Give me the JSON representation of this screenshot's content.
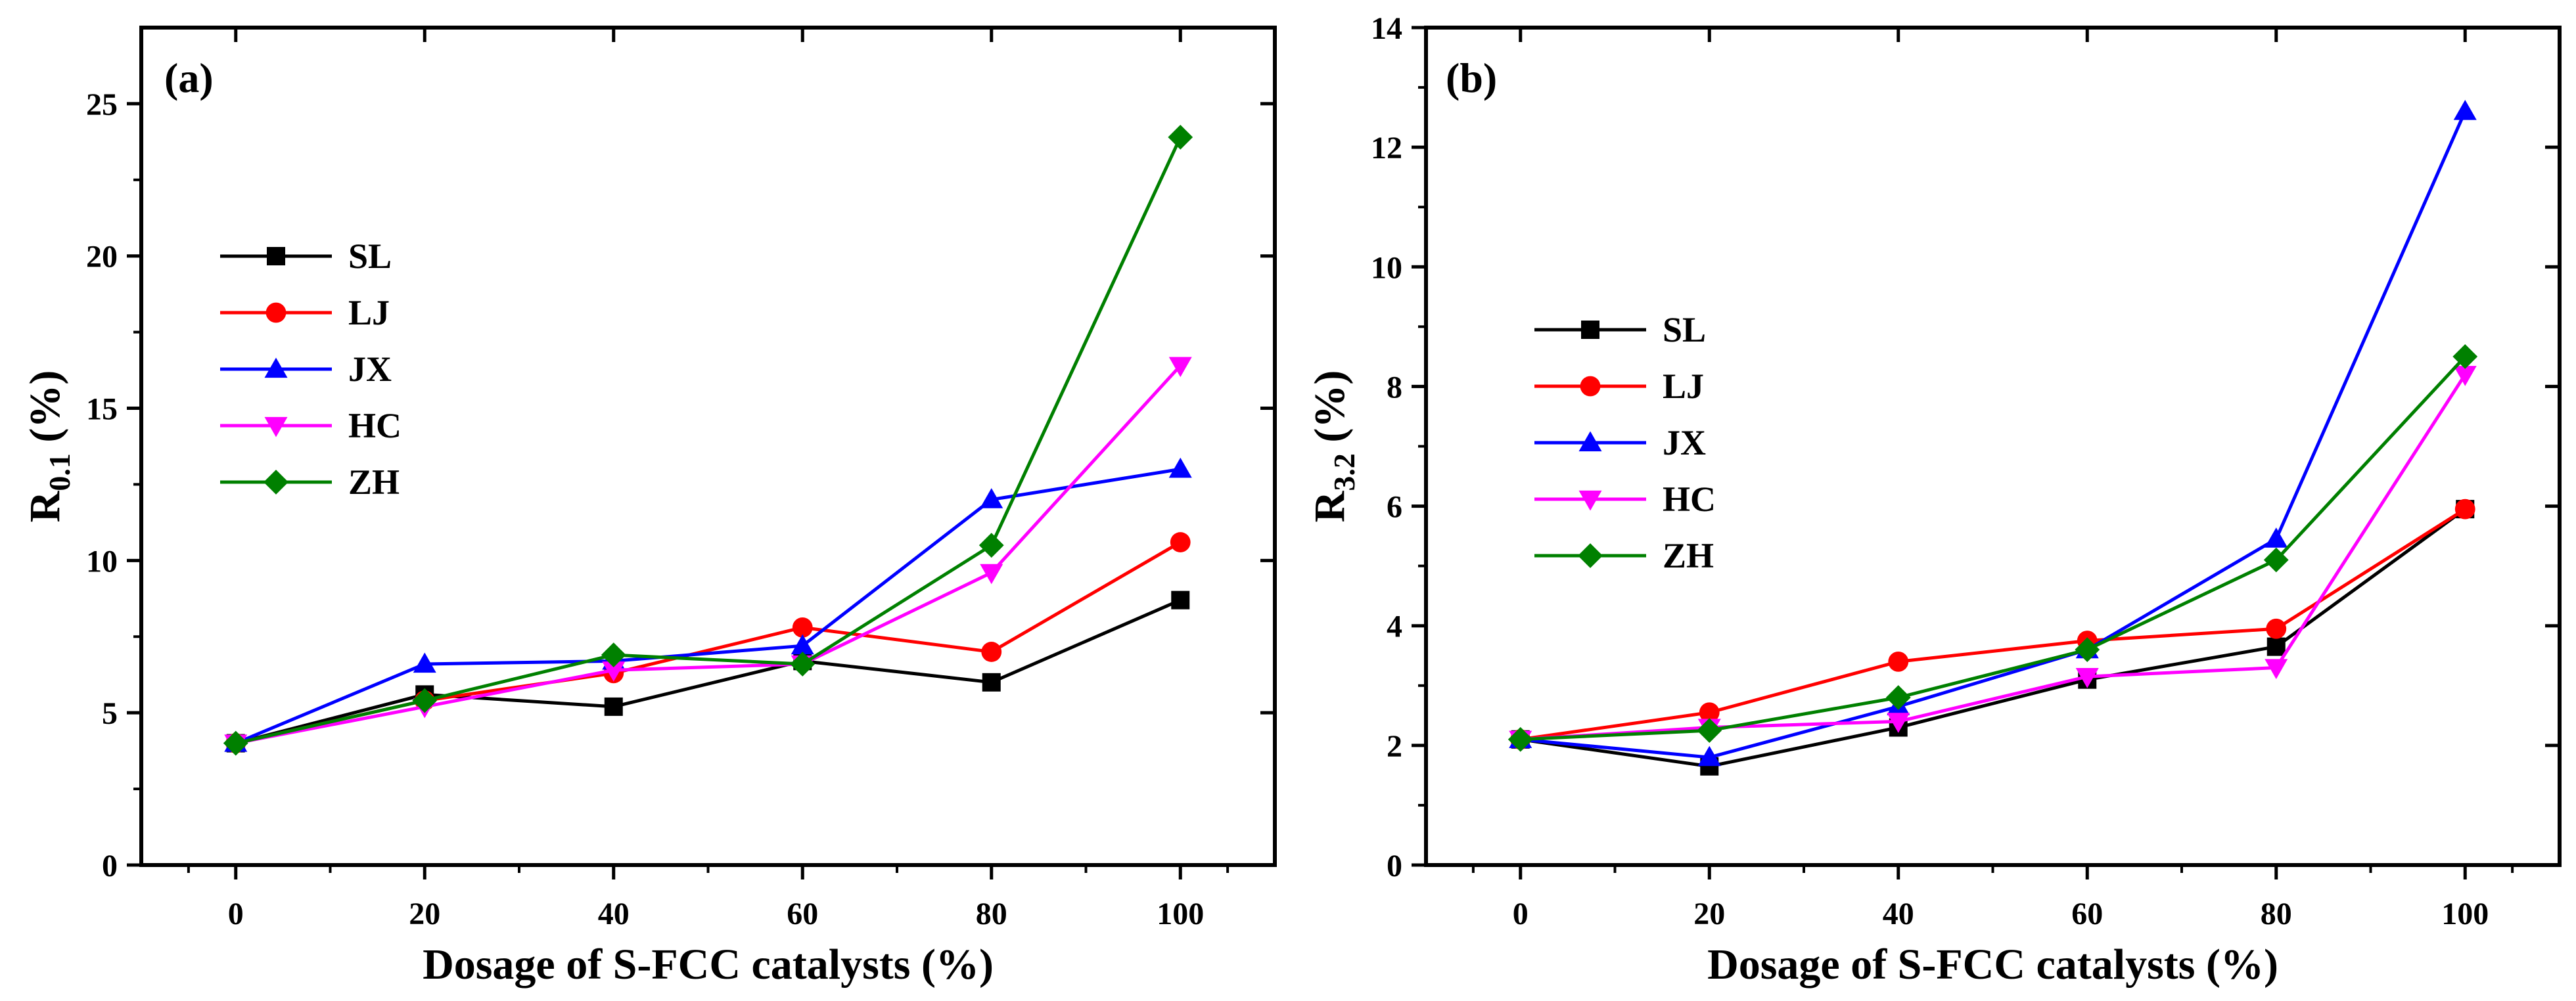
{
  "chart_data": [
    {
      "type": "line",
      "panel_label": "(a)",
      "xlabel": "Dosage of S-FCC catalysts (%)",
      "ylabel_main": "R",
      "ylabel_sub": "0.1",
      "ylabel_unit": " (%)",
      "x": [
        0,
        20,
        40,
        60,
        80,
        100
      ],
      "xlim": [
        -10,
        110
      ],
      "ylim": [
        0,
        27.5
      ],
      "xticks": [
        0,
        20,
        40,
        60,
        80,
        100
      ],
      "yticks": [
        0,
        5,
        10,
        15,
        20,
        25
      ],
      "legend": "upper-left",
      "series": [
        {
          "name": "SL",
          "color": "#000000",
          "marker": "square",
          "values": [
            4.0,
            5.6,
            5.2,
            6.7,
            6.0,
            8.7
          ]
        },
        {
          "name": "LJ",
          "color": "#ff0000",
          "marker": "circle",
          "values": [
            4.0,
            5.4,
            6.3,
            7.8,
            7.0,
            10.6
          ]
        },
        {
          "name": "JX",
          "color": "#0000ff",
          "marker": "triangle-up",
          "values": [
            4.0,
            6.6,
            6.7,
            7.2,
            12.0,
            13.0
          ]
        },
        {
          "name": "HC",
          "color": "#ff00ff",
          "marker": "triangle-down",
          "values": [
            4.0,
            5.2,
            6.4,
            6.6,
            9.6,
            16.4
          ]
        },
        {
          "name": "ZH",
          "color": "#008000",
          "marker": "diamond",
          "values": [
            4.0,
            5.4,
            6.9,
            6.6,
            10.5,
            23.9
          ]
        }
      ]
    },
    {
      "type": "line",
      "panel_label": "(b)",
      "xlabel": "Dosage of S-FCC catalysts (%)",
      "ylabel_main": "R",
      "ylabel_sub": "3.2",
      "ylabel_unit": " (%)",
      "x": [
        0,
        20,
        40,
        60,
        80,
        100
      ],
      "xlim": [
        -10,
        110
      ],
      "ylim": [
        0,
        14
      ],
      "xticks": [
        0,
        20,
        40,
        60,
        80,
        100
      ],
      "yticks": [
        0,
        2,
        4,
        6,
        8,
        10,
        12,
        14
      ],
      "legend": "middle-left",
      "series": [
        {
          "name": "SL",
          "color": "#000000",
          "marker": "square",
          "values": [
            2.1,
            1.65,
            2.3,
            3.1,
            3.65,
            5.95
          ]
        },
        {
          "name": "LJ",
          "color": "#ff0000",
          "marker": "circle",
          "values": [
            2.1,
            2.55,
            3.4,
            3.75,
            3.95,
            5.95
          ]
        },
        {
          "name": "JX",
          "color": "#0000ff",
          "marker": "triangle-up",
          "values": [
            2.1,
            1.8,
            2.65,
            3.6,
            5.45,
            12.6
          ]
        },
        {
          "name": "HC",
          "color": "#ff00ff",
          "marker": "triangle-down",
          "values": [
            2.1,
            2.3,
            2.4,
            3.15,
            3.3,
            8.2
          ]
        },
        {
          "name": "ZH",
          "color": "#008000",
          "marker": "diamond",
          "values": [
            2.1,
            2.25,
            2.8,
            3.6,
            5.1,
            8.5
          ]
        }
      ]
    }
  ]
}
